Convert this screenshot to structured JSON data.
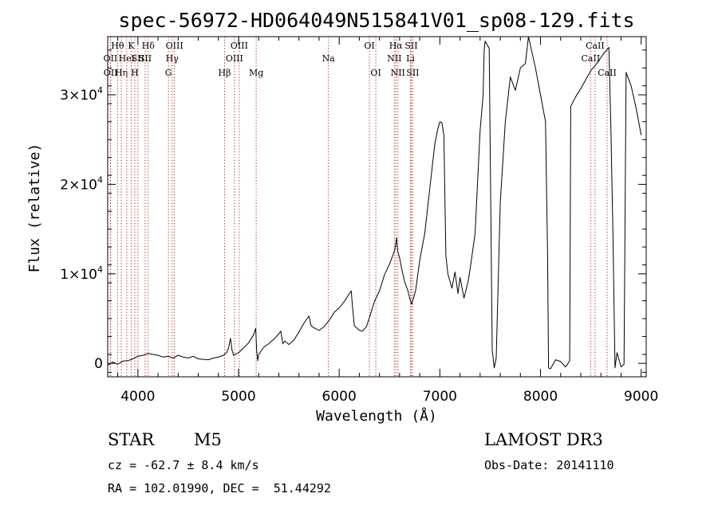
{
  "chart_data": {
    "type": "line",
    "title": "spec-56972-HD064049N515841V01_sp08-129.fits",
    "xlabel": "Wavelength (Å)",
    "ylabel": "Flux (relative)",
    "xlim": [
      3700,
      9050
    ],
    "ylim": [
      -1500,
      36500
    ],
    "x_ticks": [
      {
        "v": 4000,
        "label": "4000"
      },
      {
        "v": 5000,
        "label": "5000"
      },
      {
        "v": 6000,
        "label": "6000"
      },
      {
        "v": 7000,
        "label": "7000"
      },
      {
        "v": 8000,
        "label": "8000"
      },
      {
        "v": 9000,
        "label": "9000"
      }
    ],
    "y_ticks": [
      {
        "v": 0,
        "base": "0",
        "exp": ""
      },
      {
        "v": 10000,
        "base": "1×10",
        "exp": "4"
      },
      {
        "v": 20000,
        "base": "2×10",
        "exp": "4"
      },
      {
        "v": 30000,
        "base": "3×10",
        "exp": "4"
      }
    ],
    "series": [
      {
        "name": "flux",
        "points": [
          [
            3700,
            -200
          ],
          [
            3750,
            150
          ],
          [
            3800,
            -100
          ],
          [
            3850,
            250
          ],
          [
            3900,
            300
          ],
          [
            3950,
            500
          ],
          [
            4000,
            800
          ],
          [
            4050,
            900
          ],
          [
            4100,
            1100
          ],
          [
            4150,
            1000
          ],
          [
            4200,
            900
          ],
          [
            4250,
            700
          ],
          [
            4300,
            800
          ],
          [
            4350,
            600
          ],
          [
            4400,
            900
          ],
          [
            4450,
            700
          ],
          [
            4500,
            600
          ],
          [
            4550,
            800
          ],
          [
            4600,
            500
          ],
          [
            4650,
            450
          ],
          [
            4700,
            400
          ],
          [
            4750,
            600
          ],
          [
            4800,
            700
          ],
          [
            4850,
            900
          ],
          [
            4880,
            1200
          ],
          [
            4900,
            1700
          ],
          [
            4920,
            2800
          ],
          [
            4935,
            1500
          ],
          [
            4950,
            900
          ],
          [
            5000,
            1200
          ],
          [
            5050,
            1700
          ],
          [
            5100,
            2300
          ],
          [
            5150,
            3200
          ],
          [
            5170,
            3900
          ],
          [
            5180,
            1500
          ],
          [
            5190,
            300
          ],
          [
            5200,
            1000
          ],
          [
            5250,
            1800
          ],
          [
            5300,
            2200
          ],
          [
            5350,
            2700
          ],
          [
            5400,
            3300
          ],
          [
            5420,
            3600
          ],
          [
            5440,
            2200
          ],
          [
            5460,
            2500
          ],
          [
            5500,
            2100
          ],
          [
            5550,
            2600
          ],
          [
            5600,
            3500
          ],
          [
            5650,
            4500
          ],
          [
            5700,
            5300
          ],
          [
            5720,
            4200
          ],
          [
            5760,
            3900
          ],
          [
            5800,
            3700
          ],
          [
            5850,
            4100
          ],
          [
            5900,
            4800
          ],
          [
            5950,
            5700
          ],
          [
            6000,
            6200
          ],
          [
            6050,
            6900
          ],
          [
            6100,
            7800
          ],
          [
            6120,
            8100
          ],
          [
            6130,
            6600
          ],
          [
            6150,
            4200
          ],
          [
            6200,
            3700
          ],
          [
            6230,
            3600
          ],
          [
            6270,
            4100
          ],
          [
            6300,
            5100
          ],
          [
            6350,
            6900
          ],
          [
            6400,
            8100
          ],
          [
            6450,
            9900
          ],
          [
            6500,
            11100
          ],
          [
            6550,
            12600
          ],
          [
            6570,
            14000
          ],
          [
            6580,
            12600
          ],
          [
            6600,
            11800
          ],
          [
            6620,
            10600
          ],
          [
            6650,
            9100
          ],
          [
            6680,
            8200
          ],
          [
            6700,
            7300
          ],
          [
            6720,
            6600
          ],
          [
            6740,
            7400
          ],
          [
            6760,
            8200
          ],
          [
            6800,
            11500
          ],
          [
            6850,
            14500
          ],
          [
            6900,
            19500
          ],
          [
            6950,
            24500
          ],
          [
            6980,
            26200
          ],
          [
            7000,
            27000
          ],
          [
            7020,
            26900
          ],
          [
            7040,
            25500
          ],
          [
            7060,
            12000
          ],
          [
            7080,
            10000
          ],
          [
            7120,
            8400
          ],
          [
            7150,
            10200
          ],
          [
            7180,
            7800
          ],
          [
            7200,
            9600
          ],
          [
            7240,
            7300
          ],
          [
            7280,
            9100
          ],
          [
            7300,
            10500
          ],
          [
            7350,
            14500
          ],
          [
            7400,
            26000
          ],
          [
            7430,
            30000
          ],
          [
            7440,
            35000
          ],
          [
            7450,
            36000
          ],
          [
            7490,
            35200
          ],
          [
            7520,
            1500
          ],
          [
            7540,
            -500
          ],
          [
            7560,
            600
          ],
          [
            7600,
            18000
          ],
          [
            7650,
            27000
          ],
          [
            7700,
            32000
          ],
          [
            7750,
            30500
          ],
          [
            7800,
            33000
          ],
          [
            7850,
            33500
          ],
          [
            7880,
            36500
          ],
          [
            7900,
            35500
          ],
          [
            7950,
            33000
          ],
          [
            8000,
            30000
          ],
          [
            8050,
            27000
          ],
          [
            8070,
            12000
          ],
          [
            8080,
            -500
          ],
          [
            8100,
            -600
          ],
          [
            8150,
            400
          ],
          [
            8200,
            200
          ],
          [
            8250,
            -400
          ],
          [
            8290,
            300
          ],
          [
            8300,
            28700
          ],
          [
            8350,
            29800
          ],
          [
            8400,
            30700
          ],
          [
            8450,
            31700
          ],
          [
            8500,
            32700
          ],
          [
            8560,
            33500
          ],
          [
            8620,
            34500
          ],
          [
            8680,
            35300
          ],
          [
            8700,
            26000
          ],
          [
            8720,
            14000
          ],
          [
            8740,
            -500
          ],
          [
            8760,
            1200
          ],
          [
            8800,
            -400
          ],
          [
            8830,
            -100
          ],
          [
            8850,
            32500
          ],
          [
            8900,
            31000
          ],
          [
            8950,
            28500
          ],
          [
            9000,
            25500
          ]
        ]
      }
    ],
    "lines": [
      {
        "w": 3727,
        "label": "OII",
        "row": 2
      },
      {
        "w": 3729,
        "label": "OII",
        "row": 3
      },
      {
        "w": 3798,
        "label": "Hθ",
        "row": 1
      },
      {
        "w": 3835,
        "label": "Hη",
        "row": 3
      },
      {
        "w": 3889,
        "label": "HeI",
        "row": 2
      },
      {
        "w": 3934,
        "label": "K",
        "row": 1
      },
      {
        "w": 3969,
        "label": "H",
        "row": 3
      },
      {
        "w": 4000,
        "label": "SII",
        "row": 2
      },
      {
        "w": 4102,
        "label": "Hδ",
        "row": 1
      },
      {
        "w": 4072,
        "label": "SII",
        "row": 2
      },
      {
        "w": 4304,
        "label": "G",
        "row": 3
      },
      {
        "w": 4340,
        "label": "Hγ",
        "row": 2
      },
      {
        "w": 4363,
        "label": "OIII",
        "row": 1
      },
      {
        "w": 4861,
        "label": "Hβ",
        "row": 3
      },
      {
        "w": 4959,
        "label": "OIII",
        "row": 2
      },
      {
        "w": 5007,
        "label": "OIII",
        "row": 1
      },
      {
        "w": 5175,
        "label": "Mg",
        "row": 3
      },
      {
        "w": 5893,
        "label": "Na",
        "row": 2
      },
      {
        "w": 6300,
        "label": "OI",
        "row": 1
      },
      {
        "w": 6364,
        "label": "OI",
        "row": 3
      },
      {
        "w": 6548,
        "label": "NII",
        "row": 2
      },
      {
        "w": 6563,
        "label": "Hα",
        "row": 1
      },
      {
        "w": 6583,
        "label": "NII",
        "row": 3
      },
      {
        "w": 6716,
        "label": "SII",
        "row": 1
      },
      {
        "w": 6708,
        "label": "Li",
        "row": 2
      },
      {
        "w": 6731,
        "label": "SII",
        "row": 3
      },
      {
        "w": 8498,
        "label": "CaII",
        "row": 2
      },
      {
        "w": 8542,
        "label": "CaII",
        "row": 1
      },
      {
        "w": 8662,
        "label": "CaII",
        "row": 3
      }
    ]
  },
  "info": {
    "object_class": "STAR",
    "subclass": "M5",
    "survey": "LAMOST DR3",
    "redshift_line": "cz = -62.7 ± 8.4 km/s",
    "obs_date_line": "Obs-Date: 20141110",
    "coords_line": "RA = 102.01990, DEC =  51.44292"
  }
}
